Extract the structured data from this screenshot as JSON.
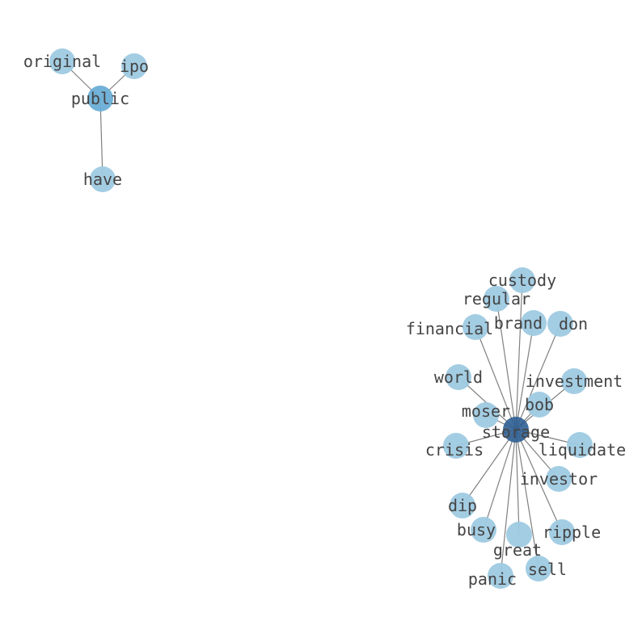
{
  "graph": {
    "type": "network",
    "node_colors": {
      "leaf": "#9ecae1",
      "public": "#6baed6",
      "storage": "#2f5f94"
    },
    "edge_color": "#808080",
    "label_color": "#444444",
    "nodes": [
      "public",
      "original",
      "ipo",
      "have",
      "storage",
      "custody",
      "regular",
      "financial",
      "brand",
      "don",
      "world",
      "investment",
      "bob",
      "moser",
      "crisis",
      "liquidate",
      "investor",
      "dip",
      "busy",
      "great",
      "ripple",
      "sell",
      "panic"
    ],
    "hubs": {
      "public": "public",
      "storage": "storage"
    },
    "edges": [
      [
        "public",
        "original"
      ],
      [
        "public",
        "ipo"
      ],
      [
        "public",
        "have"
      ],
      [
        "storage",
        "custody"
      ],
      [
        "storage",
        "regular"
      ],
      [
        "storage",
        "financial"
      ],
      [
        "storage",
        "brand"
      ],
      [
        "storage",
        "don"
      ],
      [
        "storage",
        "world"
      ],
      [
        "storage",
        "investment"
      ],
      [
        "storage",
        "bob"
      ],
      [
        "storage",
        "moser"
      ],
      [
        "storage",
        "crisis"
      ],
      [
        "storage",
        "liquidate"
      ],
      [
        "storage",
        "investor"
      ],
      [
        "storage",
        "dip"
      ],
      [
        "storage",
        "busy"
      ],
      [
        "storage",
        "great"
      ],
      [
        "storage",
        "ripple"
      ],
      [
        "storage",
        "sell"
      ],
      [
        "storage",
        "panic"
      ]
    ]
  }
}
